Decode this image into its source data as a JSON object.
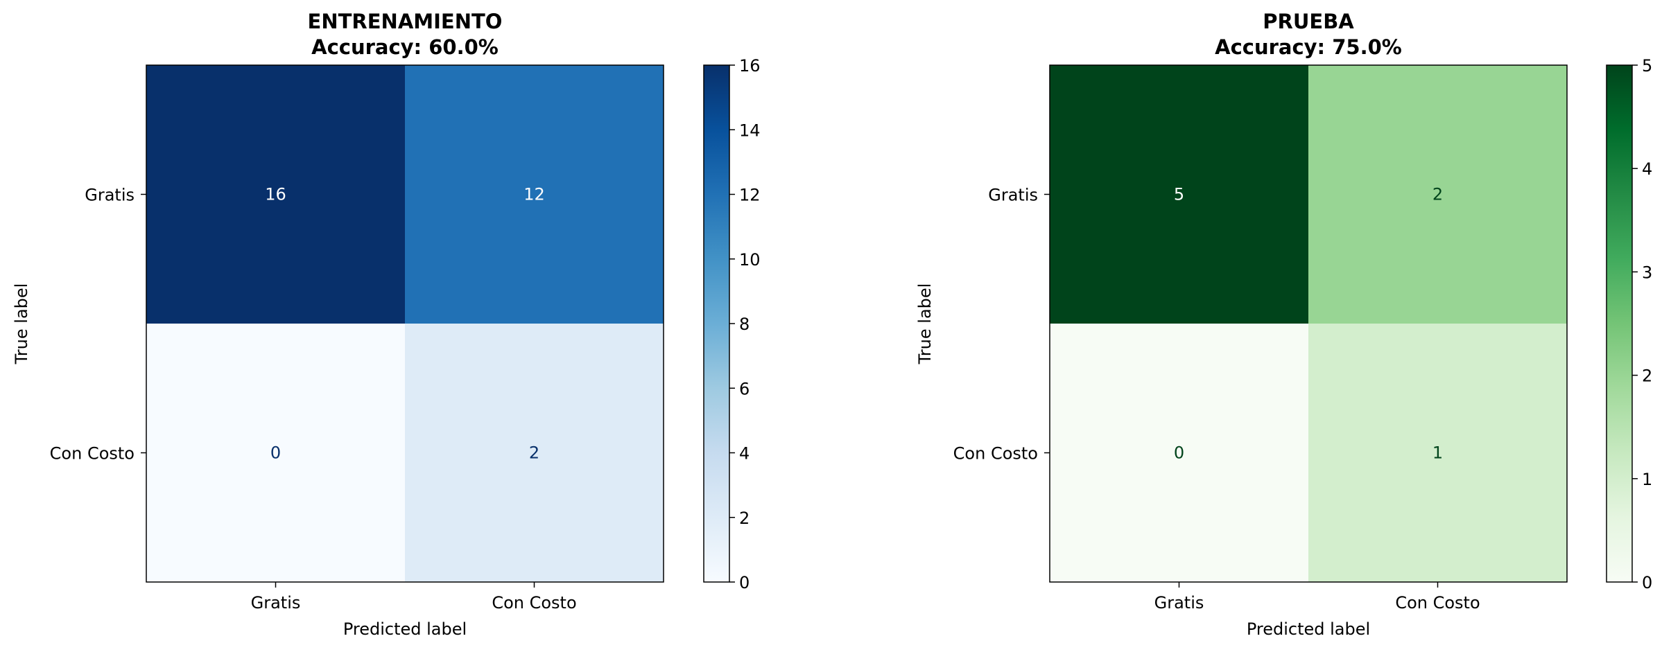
{
  "chart_data": [
    {
      "type": "heatmap",
      "title": "ENTRENAMIENTO",
      "subtitle": "Accuracy: 60.0%",
      "xlabel": "Predicted label",
      "ylabel": "True label",
      "x_categories": [
        "Gratis",
        "Con Costo"
      ],
      "y_categories": [
        "Gratis",
        "Con Costo"
      ],
      "values": [
        [
          16,
          12
        ],
        [
          0,
          2
        ]
      ],
      "colormap": "Blues",
      "color_low": "#f7fbff",
      "color_high": "#08306b",
      "colorbar_range": [
        0,
        16
      ],
      "colorbar_ticks": [
        "0",
        "2",
        "4",
        "6",
        "8",
        "10",
        "12",
        "14",
        "16"
      ]
    },
    {
      "type": "heatmap",
      "title": "PRUEBA",
      "subtitle": "Accuracy: 75.0%",
      "xlabel": "Predicted label",
      "ylabel": "True label",
      "x_categories": [
        "Gratis",
        "Con Costo"
      ],
      "y_categories": [
        "Gratis",
        "Con Costo"
      ],
      "values": [
        [
          5,
          2
        ],
        [
          0,
          1
        ]
      ],
      "colormap": "Greens",
      "color_low": "#f7fcf5",
      "color_high": "#00441b",
      "colorbar_range": [
        0,
        5
      ],
      "colorbar_ticks": [
        "0",
        "1",
        "2",
        "3",
        "4",
        "5"
      ]
    }
  ]
}
